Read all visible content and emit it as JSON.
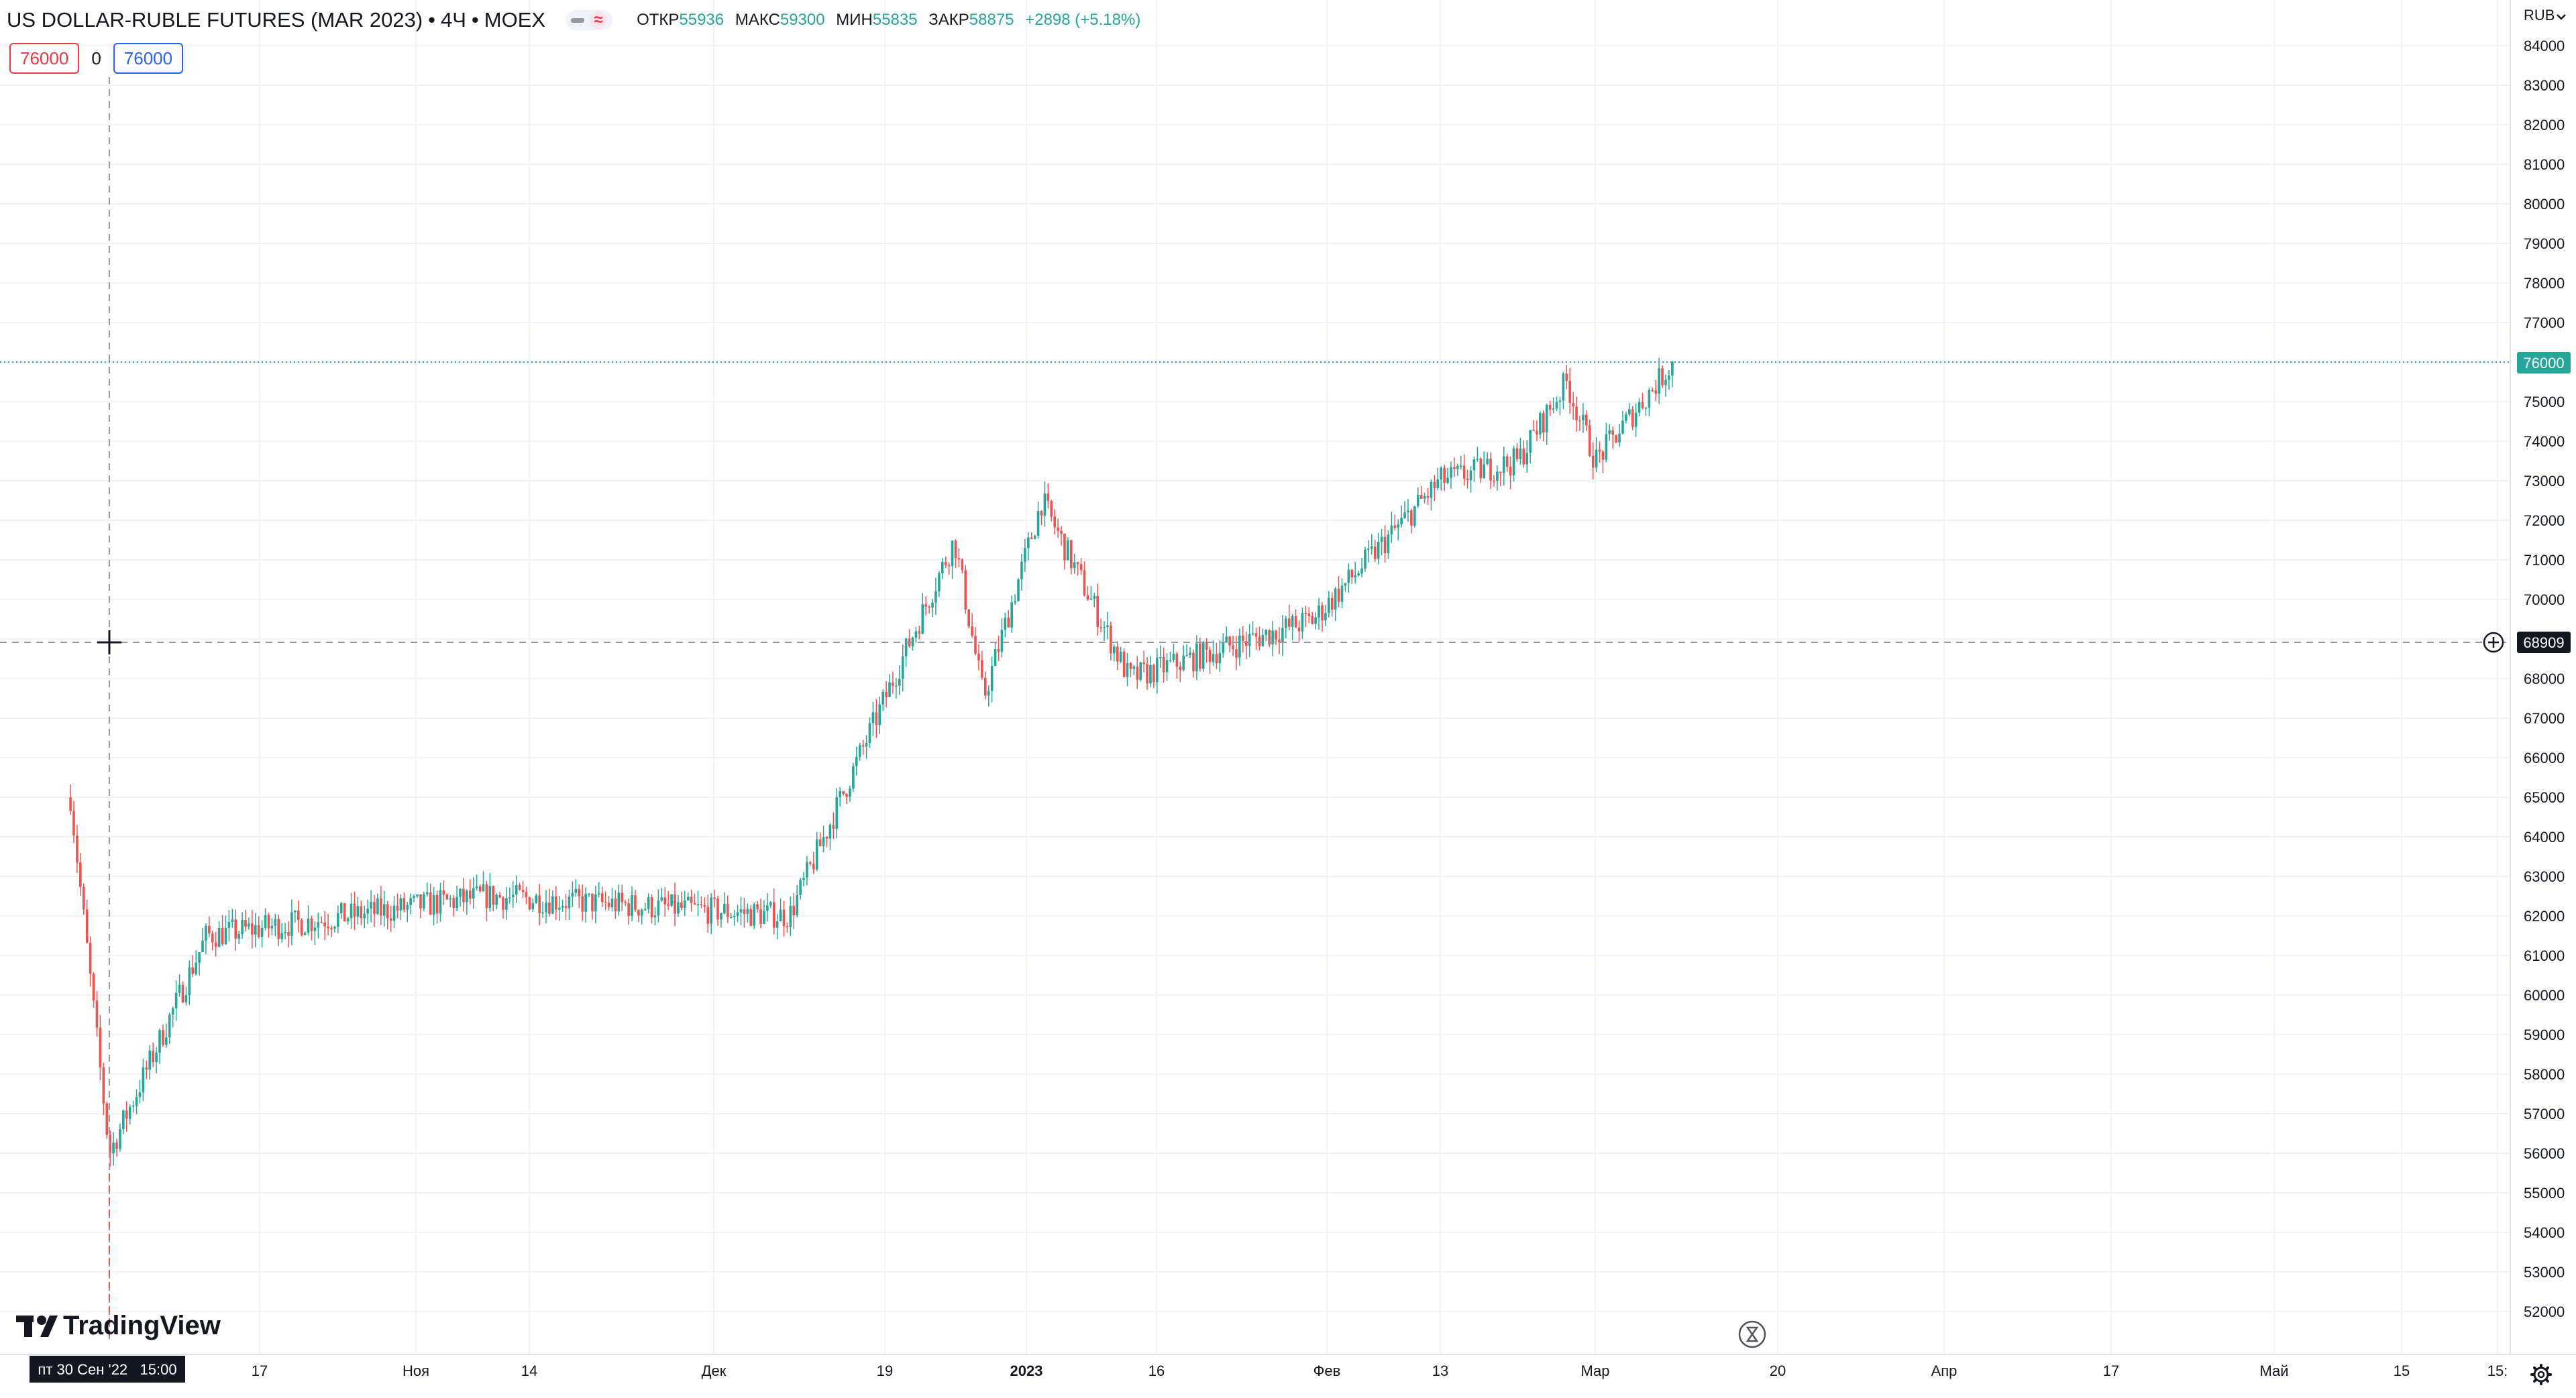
{
  "legend": {
    "symbol_title": "US DOLLAR-RUBLE FUTURES (MAR 2023)",
    "interval": "4Ч",
    "exchange": "MOEX",
    "separator": "•",
    "open_label": "ОТКР",
    "open_value": "55936",
    "high_label": "МАКС",
    "high_value": "59300",
    "low_label": "МИН",
    "low_value": "55835",
    "close_label": "ЗАКР",
    "close_value": "58875",
    "change": "+2898 (+5.18%)"
  },
  "order_panel": {
    "sell_price": "76000",
    "spread": "0",
    "buy_price": "76000"
  },
  "price_scale": {
    "currency": "RUB",
    "currency_icon": "chevron-down-icon",
    "ticks": [
      "84000",
      "83000",
      "82000",
      "81000",
      "80000",
      "79000",
      "78000",
      "77000",
      "76000",
      "75000",
      "74000",
      "73000",
      "72000",
      "71000",
      "70000",
      "69000",
      "68000",
      "67000",
      "66000",
      "65000",
      "64000",
      "63000",
      "62000",
      "61000",
      "60000",
      "59000",
      "58000",
      "57000",
      "56000",
      "55000",
      "54000",
      "53000",
      "52000"
    ],
    "last_price_label": "76000",
    "crosshair_price_label": "68909",
    "add_icon": "plus-circle-icon"
  },
  "time_scale": {
    "ticks": [
      {
        "label": "17",
        "bold": false
      },
      {
        "label": "Ноя",
        "bold": false
      },
      {
        "label": "14",
        "bold": false
      },
      {
        "label": "Дек",
        "bold": false
      },
      {
        "label": "19",
        "bold": false
      },
      {
        "label": "2023",
        "bold": true
      },
      {
        "label": "16",
        "bold": false
      },
      {
        "label": "Фев",
        "bold": false
      },
      {
        "label": "13",
        "bold": false
      },
      {
        "label": "Мар",
        "bold": false
      },
      {
        "label": "20",
        "bold": false
      },
      {
        "label": "Апр",
        "bold": false
      },
      {
        "label": "17",
        "bold": false
      },
      {
        "label": "Май",
        "bold": false
      },
      {
        "label": "15",
        "bold": false
      },
      {
        "label": "15:",
        "bold": false
      }
    ],
    "crosshair_time_label": "пт 30 Сен '22   15:00",
    "settings_icon": "gear-icon"
  },
  "watermark": {
    "text": "TradingView",
    "icon": "tradingview-logo-icon"
  },
  "replay_icon": "hourglass-icon",
  "colors": {
    "up": "#26a69a",
    "down": "#ef5350",
    "grid": "#f0f3fa",
    "last_price": "#26a69a",
    "crosshair_label": "#131722",
    "buy_border": "#2962ff",
    "sell_border": "#f23645"
  },
  "chart_data": {
    "type": "candlestick",
    "title": "US DOLLAR-RUBLE FUTURES (MAR 2023)",
    "interval": "4Ч",
    "currency": "RUB",
    "y_range": [
      51500,
      84500
    ],
    "last_price": 76000,
    "crosshair": {
      "time": "пт 30 Сен '22 15:00",
      "price": 68909
    },
    "key_points": [
      {
        "date": "2022-09-26",
        "price": 65000
      },
      {
        "date": "2022-09-30",
        "price": 56000
      },
      {
        "date": "2022-10-10",
        "price": 61500
      },
      {
        "date": "2022-11-08",
        "price": 62500
      },
      {
        "date": "2022-12-09",
        "price": 62000
      },
      {
        "date": "2022-12-26",
        "price": 71500
      },
      {
        "date": "2022-12-29",
        "price": 67500
      },
      {
        "date": "2023-01-04",
        "price": 72500
      },
      {
        "date": "2023-01-13",
        "price": 68000
      },
      {
        "date": "2023-02-01",
        "price": 69500
      },
      {
        "date": "2023-02-14",
        "price": 73000
      },
      {
        "date": "2023-02-22",
        "price": 73500
      },
      {
        "date": "2023-02-27",
        "price": 75500
      },
      {
        "date": "2023-03-02",
        "price": 73500
      },
      {
        "date": "2023-03-10",
        "price": 76000
      }
    ]
  }
}
